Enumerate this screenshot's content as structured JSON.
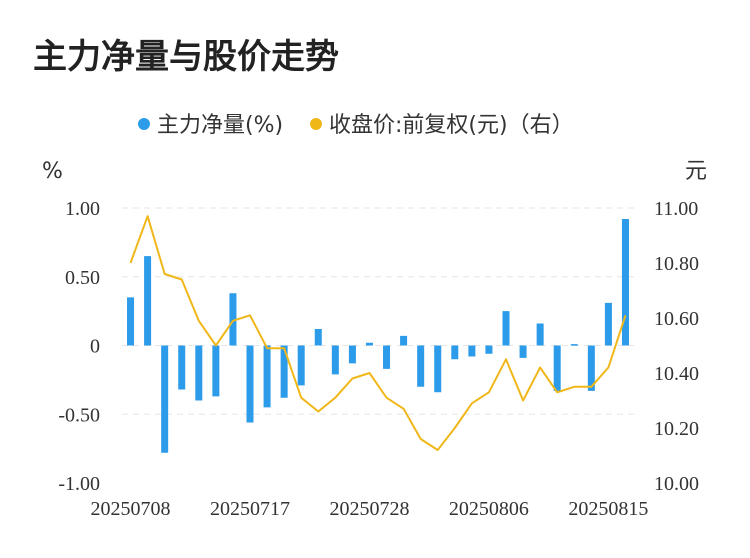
{
  "chart_data": {
    "type": "bar+line",
    "title": "主力净量与股价走势",
    "legend": [
      {
        "label": "主力净量(%)",
        "color": "#2b9bea"
      },
      {
        "label": "收盘价:前复权(元)（右）",
        "color": "#f0b719"
      }
    ],
    "left_unit": "%",
    "right_unit": "元",
    "left_ticks": [
      "1.00",
      "0.50",
      "0",
      "-0.50",
      "-1.00"
    ],
    "left_tick_values": [
      1.0,
      0.5,
      0,
      -0.5,
      -1.0
    ],
    "right_ticks": [
      "11.00",
      "10.80",
      "10.60",
      "10.40",
      "10.20",
      "10.00"
    ],
    "right_tick_values": [
      11.0,
      10.8,
      10.6,
      10.4,
      10.2,
      10.0
    ],
    "left_ylim": [
      -1.0,
      1.0
    ],
    "right_ylim": [
      10.0,
      11.0
    ],
    "x_tick_labels": [
      "20250708",
      "20250717",
      "20250728",
      "20250806",
      "20250815"
    ],
    "x_tick_indices": [
      0,
      7,
      14,
      21,
      28
    ],
    "grid": "horizontal-dashed",
    "legend_position": "top-center",
    "series": [
      {
        "name": "主力净量(%)",
        "type": "bar",
        "color": "#2b9bea",
        "values": [
          0.35,
          0.65,
          -0.78,
          -0.32,
          -0.4,
          -0.37,
          0.38,
          -0.56,
          -0.45,
          -0.38,
          -0.29,
          0.12,
          -0.21,
          -0.13,
          0.02,
          -0.17,
          0.07,
          -0.3,
          -0.34,
          -0.1,
          -0.08,
          -0.06,
          0.25,
          -0.09,
          0.16,
          -0.33,
          0.01,
          -0.33,
          0.31,
          0.92
        ]
      },
      {
        "name": "收盘价:前复权(元)（右）",
        "type": "line",
        "color": "#f0b719",
        "values": [
          10.8,
          10.97,
          10.76,
          10.74,
          10.59,
          10.5,
          10.59,
          10.61,
          10.49,
          10.49,
          10.31,
          10.26,
          10.31,
          10.38,
          10.4,
          10.31,
          10.27,
          10.16,
          10.12,
          10.2,
          10.29,
          10.33,
          10.45,
          10.3,
          10.42,
          10.33,
          10.35,
          10.35,
          10.42,
          10.61
        ]
      }
    ]
  }
}
